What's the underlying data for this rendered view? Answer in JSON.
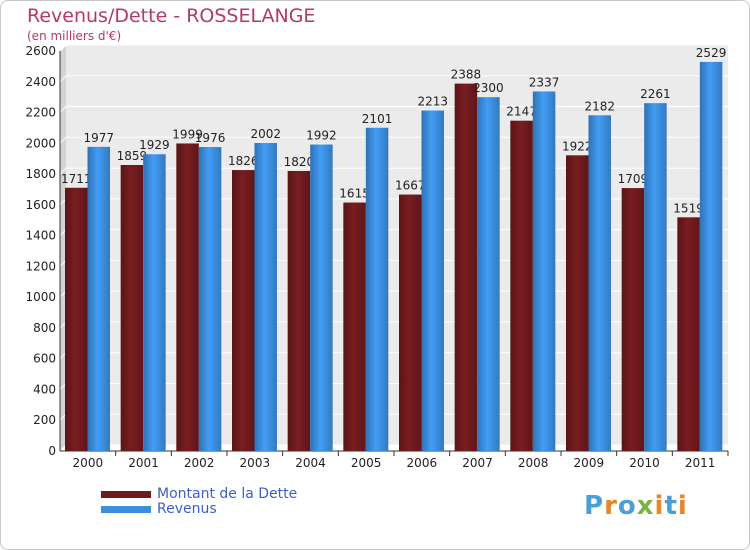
{
  "header": {
    "title": "Revenus/Dette - ROSSELANGE",
    "subtitle": "(en milliers d'€)"
  },
  "logo": {
    "text": "Proxiti",
    "letter_colors": [
      "#4a9fd8",
      "#e9862a",
      "#4a9fd8",
      "#7cb342",
      "#e9862a",
      "#4a9fd8",
      "#e9862a"
    ]
  },
  "colors": {
    "dette": "#6e1a1e",
    "revenus": "#3c8fe0",
    "title": "#b5376c",
    "legend_text": "#3b5fc4"
  },
  "chart_data": {
    "type": "bar",
    "title": "Revenus/Dette - ROSSELANGE",
    "subtitle": "(en milliers d'€)",
    "categories": [
      "2000",
      "2001",
      "2002",
      "2003",
      "2004",
      "2005",
      "2006",
      "2007",
      "2008",
      "2009",
      "2010",
      "2011"
    ],
    "series": [
      {
        "name": "Montant de la Dette",
        "color": "#6e1a1e",
        "values": [
          1711,
          1859,
          1999,
          1826,
          1820,
          1615,
          1667,
          2388,
          2147,
          1922,
          1709,
          1519
        ]
      },
      {
        "name": "Revenus",
        "color": "#3c8fe0",
        "values": [
          1977,
          1929,
          1976,
          2002,
          1992,
          2101,
          2213,
          2300,
          2337,
          2182,
          2261,
          2529
        ]
      }
    ],
    "ylim": [
      0,
      2600
    ],
    "yticks": [
      0,
      200,
      400,
      600,
      800,
      1000,
      1200,
      1400,
      1600,
      1800,
      2000,
      2200,
      2400,
      2600
    ],
    "grid": true,
    "legend": "bottom-left"
  }
}
